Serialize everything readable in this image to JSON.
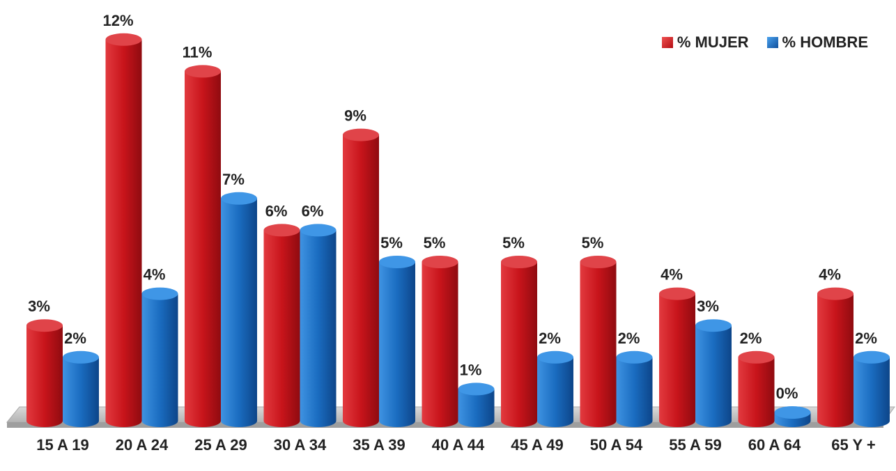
{
  "chart_data": {
    "type": "bar",
    "categories": [
      "15 A 19",
      "20 A 24",
      "25 A 29",
      "30 A 34",
      "35 A 39",
      "40 A 44",
      "45 A 49",
      "50 A 54",
      "55 A 59",
      "60 A 64",
      "65 Y +"
    ],
    "series": [
      {
        "name": "% MUJER",
        "values": [
          3,
          12,
          11,
          6,
          9,
          5,
          5,
          5,
          4,
          2,
          4
        ],
        "labels": [
          "3%",
          "12%",
          "11%",
          "6%",
          "9%",
          "5%",
          "5%",
          "5%",
          "4%",
          "2%",
          "4%"
        ],
        "color": "#c8141b"
      },
      {
        "name": "% HOMBRE",
        "values": [
          2,
          4,
          7,
          6,
          5,
          1,
          2,
          2,
          3,
          0,
          2
        ],
        "labels": [
          "2%",
          "4%",
          "7%",
          "6%",
          "5%",
          "1%",
          "2%",
          "2%",
          "3%",
          "0%",
          "2%"
        ],
        "color": "#1a6cc0"
      }
    ],
    "title": "",
    "xlabel": "",
    "ylabel": "",
    "ylim": [
      0,
      12
    ],
    "grid": false,
    "legend_position": "top-right"
  }
}
